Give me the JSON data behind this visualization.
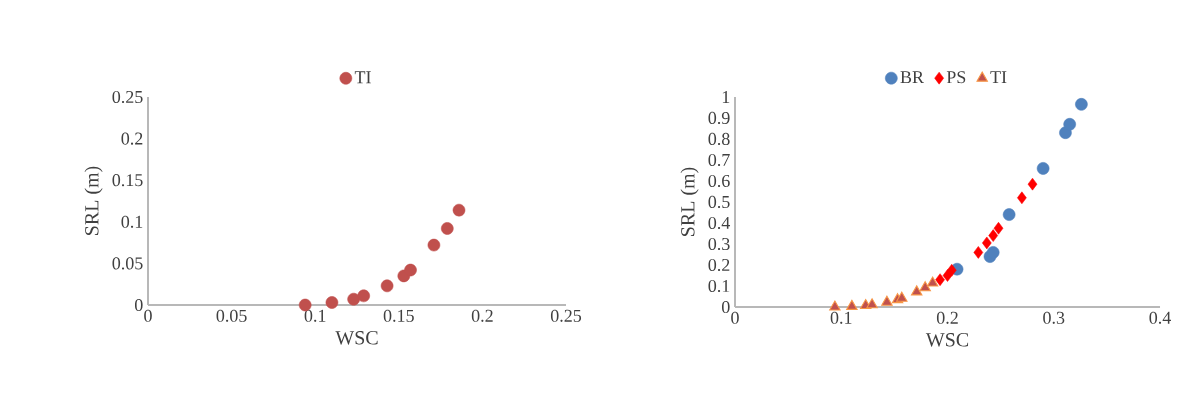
{
  "chart_data": [
    {
      "type": "scatter",
      "xlabel": "WSC",
      "ylabel": "SRL (m)",
      "legend": "top",
      "xlim": [
        0,
        0.25
      ],
      "ylim": [
        0,
        0.25
      ],
      "xticks": [
        0,
        0.05,
        0.1,
        0.15,
        0.2,
        0.25
      ],
      "yticks": [
        0,
        0.05,
        0.1,
        0.15,
        0.2,
        0.25
      ],
      "series": [
        {
          "name": "TI",
          "color": "#c0504d",
          "marker": "circle",
          "x": [
            0.094,
            0.11,
            0.123,
            0.129,
            0.143,
            0.153,
            0.157,
            0.171,
            0.179,
            0.186
          ],
          "values": [
            0,
            0.003,
            0.007,
            0.011,
            0.023,
            0.035,
            0.042,
            0.072,
            0.092,
            0.114
          ]
        }
      ]
    },
    {
      "type": "scatter",
      "xlabel": "WSC",
      "ylabel": "SRL (m)",
      "legend": "top",
      "xlim": [
        0,
        0.4
      ],
      "ylim": [
        0,
        1
      ],
      "xticks": [
        0,
        0.1,
        0.2,
        0.3,
        0.4
      ],
      "yticks": [
        0,
        0.1,
        0.2,
        0.3,
        0.4,
        0.5,
        0.6,
        0.7,
        0.8,
        0.9,
        1
      ],
      "series": [
        {
          "name": "BR",
          "color": "#4f81bd",
          "marker": "circle",
          "x": [
            0.209,
            0.24,
            0.243,
            0.256,
            0.258,
            0.29,
            0.311,
            0.315,
            0.326
          ],
          "values": [
            0.18,
            0.24,
            0.26,
            null,
            0.44,
            0.66,
            0.83,
            0.87,
            0.965
          ]
        },
        {
          "name": "PS",
          "color": "#ff0000",
          "marker": "diamond",
          "x": [
            0.193,
            0.2,
            0.204,
            0.229,
            0.237,
            0.243,
            0.248,
            0.27,
            0.28
          ],
          "values": [
            0.13,
            0.15,
            0.175,
            0.26,
            0.305,
            0.34,
            0.375,
            0.52,
            0.585
          ]
        },
        {
          "name": "TI",
          "color": "#c0504d",
          "marker": "triangle",
          "x": [
            0.094,
            0.11,
            0.123,
            0.129,
            0.143,
            0.153,
            0.157,
            0.171,
            0.179,
            0.186
          ],
          "values": [
            0,
            0.003,
            0.007,
            0.011,
            0.023,
            0.035,
            0.042,
            0.072,
            0.092,
            0.114
          ]
        }
      ]
    }
  ]
}
